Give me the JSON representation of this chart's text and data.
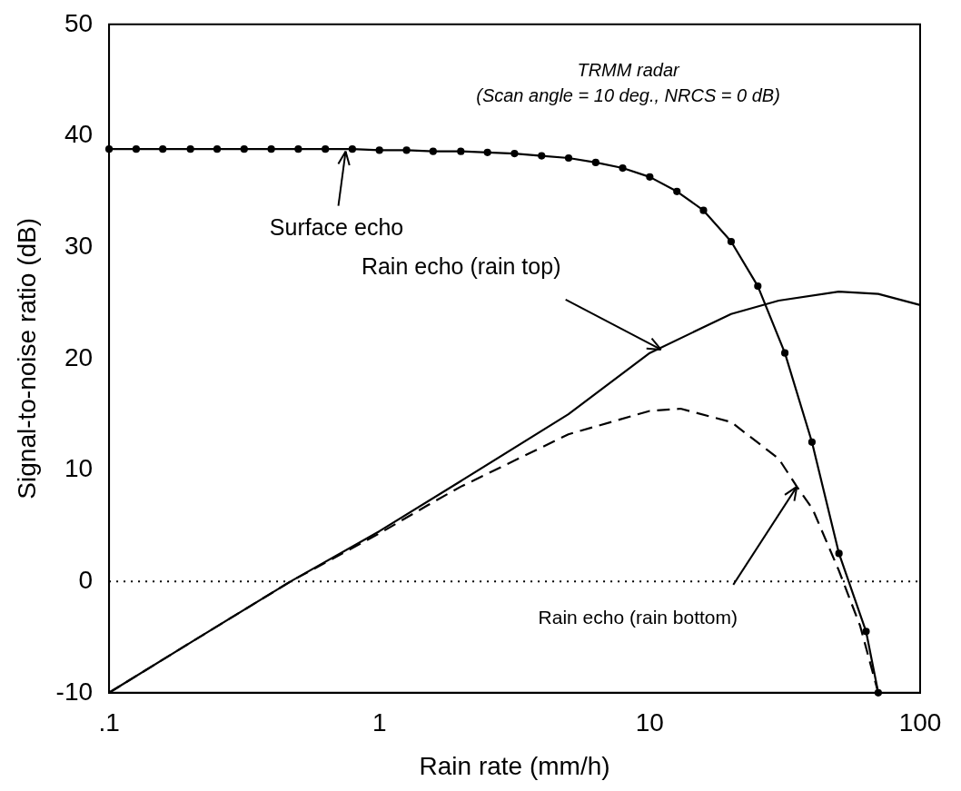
{
  "chart_data": {
    "type": "line",
    "title": "TRMM radar",
    "subtitle": "(Scan angle = 10 deg., NRCS = 0 dB)",
    "xlabel": "Rain rate (mm/h)",
    "ylabel": "Signal-to-noise ratio (dB)",
    "log": "x",
    "xlim": [
      0.1,
      100
    ],
    "xticks": [
      {
        "value": 0.1,
        "label": ".1"
      },
      1,
      10,
      100
    ],
    "ylim": [
      -10,
      50
    ],
    "yticks": [
      -10,
      0,
      10,
      20,
      30,
      40,
      50
    ],
    "grid": false,
    "legend": false,
    "series": [
      {
        "color": "#000000",
        "marker": "circle",
        "line_style": "solid",
        "x": [
          0.1,
          0.126,
          0.158,
          0.2,
          0.251,
          0.316,
          0.398,
          0.501,
          0.631,
          0.794,
          1,
          1.26,
          1.58,
          2,
          2.51,
          3.16,
          3.98,
          5.01,
          6.31,
          7.94,
          10,
          12.6,
          15.8,
          20,
          25.1,
          31.6,
          39.8,
          50.1,
          63.1,
          70
        ],
        "values": [
          38.8,
          38.8,
          38.8,
          38.8,
          38.8,
          38.8,
          38.8,
          38.8,
          38.8,
          38.8,
          38.7,
          38.7,
          38.6,
          38.6,
          38.5,
          38.4,
          38.2,
          38,
          37.6,
          37.1,
          36.3,
          35,
          33.3,
          30.5,
          26.5,
          20.5,
          12.5,
          2.5,
          -4.5,
          -10
        ]
      },
      {
        "color": "#000000",
        "marker": "none",
        "line_style": "solid",
        "x": [
          0.1,
          0.2,
          0.47,
          1,
          2,
          5,
          10,
          20,
          30,
          50,
          70,
          100
        ],
        "values": [
          -10,
          -5.5,
          0,
          4.5,
          9,
          15,
          20.5,
          24,
          25.2,
          26,
          25.8,
          24.8
        ]
      },
      {
        "color": "#000000",
        "marker": "none",
        "line_style": "dashed",
        "x": [
          0.1,
          0.2,
          0.47,
          1,
          1.5,
          2,
          5,
          10,
          13,
          20,
          30,
          35,
          40,
          50,
          60,
          70
        ],
        "values": [
          -10,
          -5.5,
          0,
          4.3,
          6.8,
          8.5,
          13.2,
          15.3,
          15.5,
          14.3,
          11,
          8.5,
          6.5,
          1,
          -4,
          -10
        ]
      }
    ],
    "ref_lines": [
      {
        "axis": "y",
        "value": 0,
        "line_style": "dotted",
        "color": "#000000"
      }
    ],
    "annotations": [
      {
        "text": "Surface echo",
        "x": 0.75,
        "y": 38.6
      },
      {
        "text": "Rain echo (rain top)",
        "x": 11,
        "y": 20.8
      },
      {
        "text": "Rain echo (rain bottom)",
        "x": 35,
        "y": 8.5
      }
    ]
  }
}
